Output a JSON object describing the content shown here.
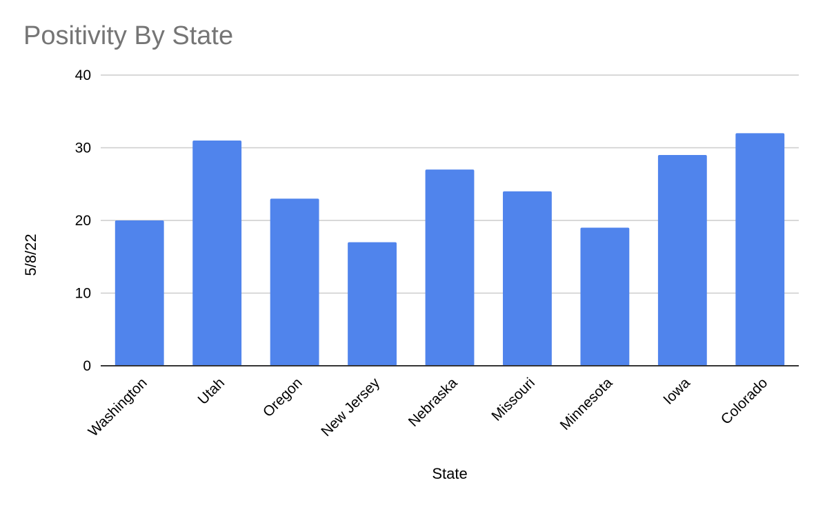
{
  "chart_data": {
    "type": "bar",
    "title": "Positivity By State",
    "xlabel": "State",
    "ylabel": "5/8/22",
    "categories": [
      "Washington",
      "Utah",
      "Oregon",
      "New Jersey",
      "Nebraska",
      "Missouri",
      "Minnesota",
      "Iowa",
      "Colorado"
    ],
    "values": [
      20,
      31,
      23,
      17,
      27,
      24,
      19,
      29,
      32
    ],
    "ylim": [
      0,
      40
    ],
    "yticks": [
      0,
      10,
      20,
      30,
      40
    ],
    "grid": true,
    "legend": "none",
    "colors": {
      "bar": "#5084ec",
      "grid": "#cccccc",
      "axis": "#333333",
      "title": "#757575"
    }
  }
}
